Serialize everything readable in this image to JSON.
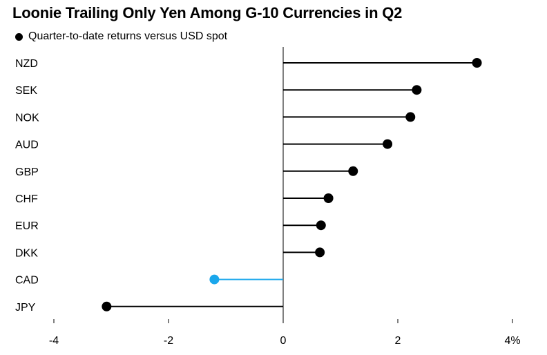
{
  "title": "Loonie Trailing Only Yen Among G-10 Currencies in Q2",
  "legend": {
    "label": "Quarter-to-date returns versus USD spot",
    "color": "#000000"
  },
  "chart_data": {
    "type": "lollipop-bar",
    "orientation": "horizontal",
    "categories": [
      "NZD",
      "SEK",
      "NOK",
      "AUD",
      "GBP",
      "CHF",
      "EUR",
      "DKK",
      "CAD",
      "JPY"
    ],
    "series": [
      {
        "name": "Quarter-to-date returns versus USD spot",
        "values": [
          3.38,
          2.33,
          2.22,
          1.82,
          1.22,
          0.79,
          0.66,
          0.64,
          -1.2,
          -3.08
        ]
      }
    ],
    "highlight": {
      "category": "CAD",
      "color": "#1aa7ec"
    },
    "default_color": "#000000",
    "xlim": [
      -4,
      4
    ],
    "xticks": [
      -4,
      -2,
      0,
      2,
      4
    ],
    "xtick_labels": [
      "-4",
      "-2",
      "0",
      "2",
      "4%"
    ],
    "xlabel": "",
    "ylabel": "",
    "grid": false
  }
}
